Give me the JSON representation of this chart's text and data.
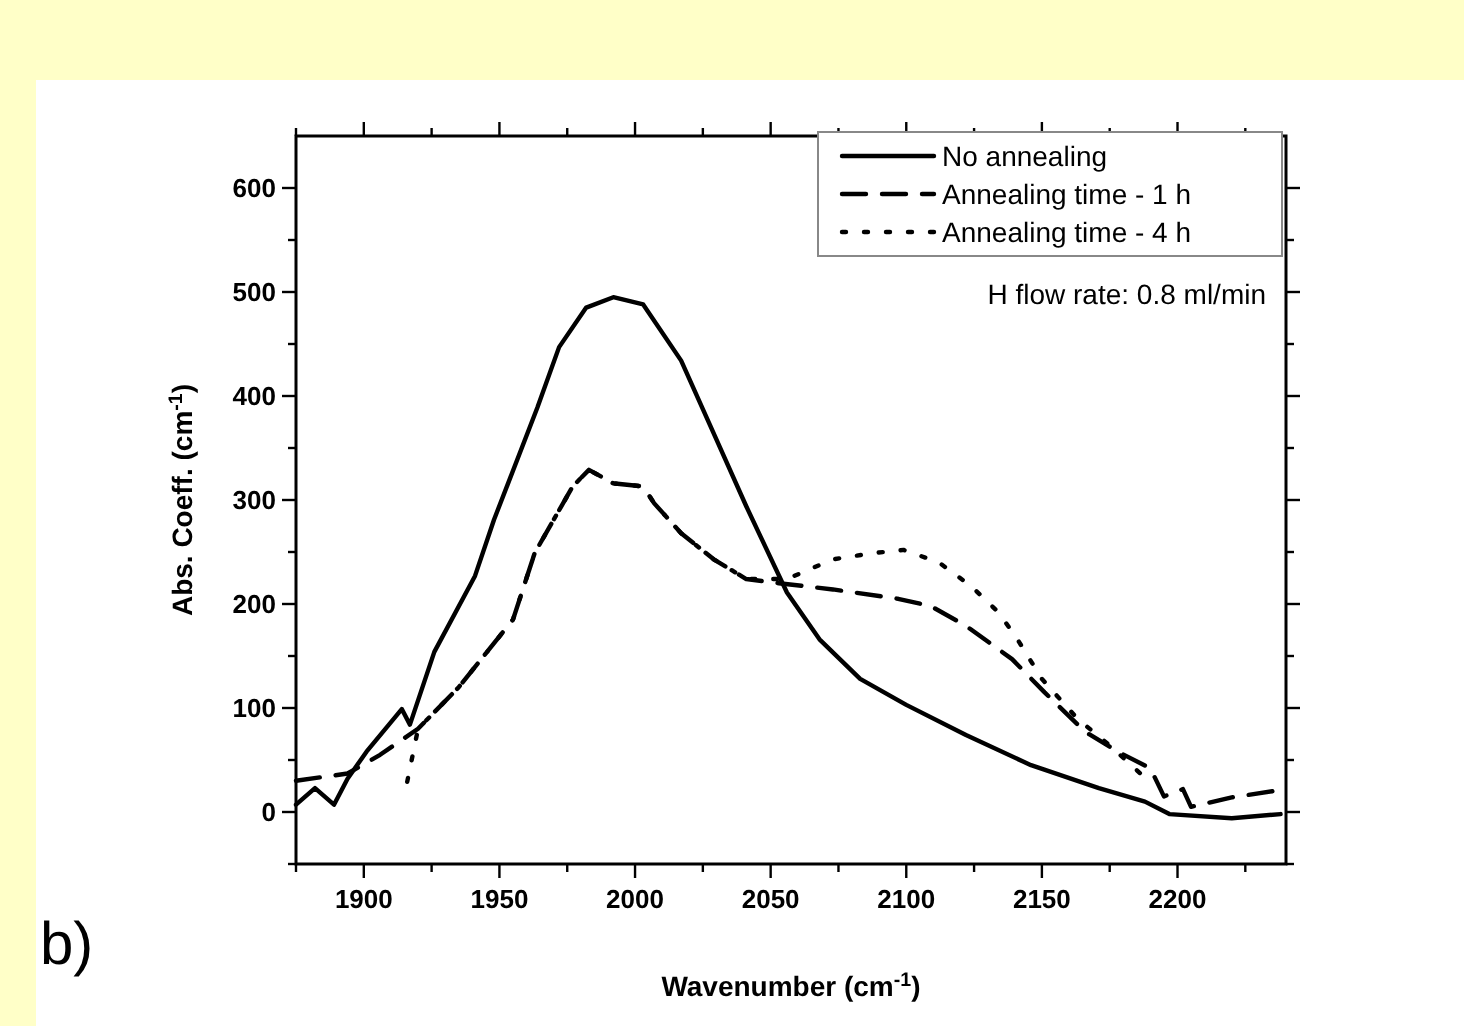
{
  "chart_data": {
    "type": "line",
    "xlabel": "Wavenumber (cm$^{-1}$)",
    "ylabel": "Abs. Coeff. (cm$^{-1}$)",
    "annotations": [
      "H flow rate: 0.8 ml/min",
      "b)"
    ],
    "xlim": [
      1875,
      2240
    ],
    "ylim": [
      -50,
      650
    ],
    "xticks": [
      {
        "value": 1875,
        "label": null
      },
      1900,
      {
        "value": 1925,
        "label": null
      },
      1950,
      {
        "value": 1975,
        "label": null
      },
      2000,
      {
        "value": 2025,
        "label": null
      },
      2050,
      {
        "value": 2075,
        "label": null
      },
      2100,
      {
        "value": 2125,
        "label": null
      },
      2150,
      {
        "value": 2175,
        "label": null
      },
      2200,
      {
        "value": 2225,
        "label": null
      }
    ],
    "yticks": [
      {
        "value": -50,
        "label": null
      },
      0,
      {
        "value": 50,
        "label": null
      },
      100,
      {
        "value": 150,
        "label": null
      },
      200,
      {
        "value": 250,
        "label": null
      },
      300,
      {
        "value": 350,
        "label": null
      },
      400,
      {
        "value": 450,
        "label": null
      },
      500,
      {
        "value": 550,
        "label": null
      },
      600
    ],
    "legend": "top right",
    "grid": false,
    "marker": "none",
    "series": [
      {
        "name": "No annealing",
        "color": "#000000",
        "line_style": "solid",
        "x": [
          1875,
          1882,
          1889,
          1894,
          1901,
          1914,
          1917,
          1926,
          1941,
          1948,
          1964,
          1972,
          1982,
          1992,
          2003,
          2017,
          2029,
          2041,
          2056,
          2068,
          2083,
          2100,
          2122,
          2146,
          2171,
          2188,
          2197,
          2220,
          2238
        ],
        "values": [
          7,
          23,
          7,
          32,
          58,
          99,
          84,
          154,
          227,
          281,
          389,
          447,
          485,
          495,
          488,
          434,
          364,
          294,
          211,
          166,
          128,
          103,
          74,
          45,
          23,
          10,
          -2,
          -6,
          -2
        ]
      },
      {
        "name": "Annealing time - 1 h",
        "color": "#000000",
        "line_style": "dashed",
        "x": [
          1875,
          1894,
          1906,
          1920,
          1935,
          1955,
          1963,
          1970,
          1977,
          1983,
          1992,
          2003,
          2007,
          2017,
          2029,
          2041,
          2053,
          2073,
          2097,
          2109,
          2122,
          2139,
          2151,
          2166,
          2178,
          2190,
          2195,
          2202,
          2205,
          2220,
          2235
        ],
        "values": [
          30,
          37,
          55,
          80,
          120,
          185,
          249,
          281,
          313,
          329,
          316,
          313,
          297,
          268,
          243,
          224,
          220,
          214,
          205,
          198,
          179,
          147,
          115,
          77,
          58,
          42,
          15,
          22,
          5,
          14,
          20
        ]
      },
      {
        "name": "Annealing time - 4 h",
        "color": "#000000",
        "line_style": "dotted",
        "x": [
          1916,
          1920,
          1935,
          1955,
          1963,
          1970,
          1977,
          1983,
          1992,
          2003,
          2007,
          2017,
          2029,
          2041,
          2056,
          2073,
          2088,
          2099,
          2112,
          2124,
          2134,
          2141,
          2150,
          2163,
          2175,
          2188
        ],
        "values": [
          29,
          80,
          120,
          185,
          249,
          281,
          313,
          329,
          316,
          313,
          297,
          268,
          243,
          224,
          224,
          243,
          249,
          252,
          240,
          217,
          192,
          166,
          128,
          90,
          64,
          33
        ]
      }
    ]
  }
}
